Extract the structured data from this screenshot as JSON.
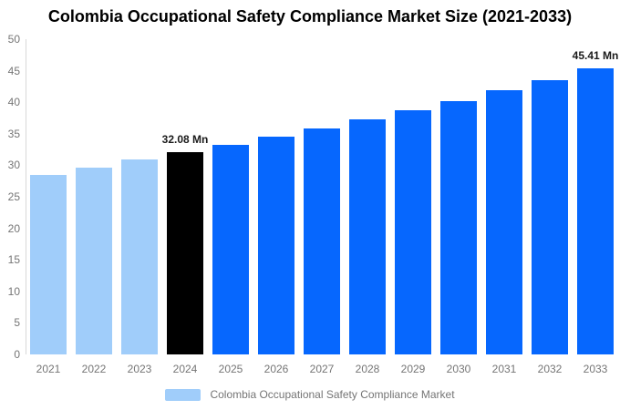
{
  "chart_data": {
    "type": "bar",
    "title": "Colombia Occupational Safety Compliance Market Size (2021-2033)",
    "categories": [
      "2021",
      "2022",
      "2023",
      "2024",
      "2025",
      "2026",
      "2027",
      "2028",
      "2029",
      "2030",
      "2031",
      "2032",
      "2033"
    ],
    "values": [
      28.5,
      29.7,
      30.9,
      32.08,
      33.2,
      34.5,
      35.9,
      37.35,
      38.7,
      40.2,
      41.9,
      43.5,
      45.41
    ],
    "unit": "Mn",
    "ylim": [
      0,
      50
    ],
    "yticks": [
      0,
      5,
      10,
      15,
      20,
      25,
      30,
      35,
      40,
      45,
      50
    ],
    "grid": false,
    "bar_colors": [
      "#A0CDFA",
      "#A0CDFA",
      "#A0CDFA",
      "#000000",
      "#0667FE",
      "#0667FE",
      "#0667FE",
      "#0667FE",
      "#0667FE",
      "#0667FE",
      "#0667FE",
      "#0667FE",
      "#0667FE"
    ],
    "data_labels": [
      {
        "index": 3,
        "text": "32.08 Mn"
      },
      {
        "index": 12,
        "text": "45.41 Mn"
      }
    ],
    "legend": {
      "position": "bottom-center",
      "items": [
        {
          "label": "Colombia Occupational Safety Compliance Market",
          "color": "#A0CDFA"
        }
      ]
    }
  },
  "colors": {
    "background": "#FFFFFF",
    "historical_bar": "#A0CDFA",
    "highlight_bar": "#000000",
    "forecast_bar": "#0667FE",
    "title_text": "#000000",
    "axis_text": "#757575",
    "legend_text": "#757575",
    "value_label_text": "#1A1A1A",
    "axis_line": "#D9D9D9"
  }
}
